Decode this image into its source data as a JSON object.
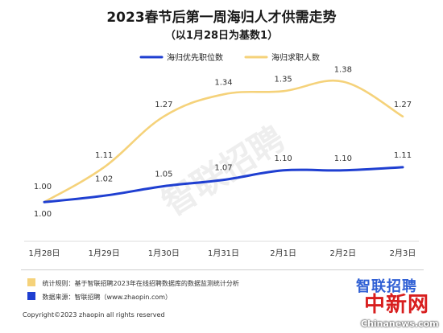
{
  "chart_data": {
    "type": "line",
    "title": "2023春节后第一周海归人才供需走势",
    "subtitle": "（以1月28日为基数1）",
    "categories": [
      "1月28日",
      "1月29日",
      "1月30日",
      "1月31日",
      "2月1日",
      "2月2日",
      "2月3日"
    ],
    "series": [
      {
        "name": "海归优先职位数",
        "values": [
          1.0,
          1.02,
          1.05,
          1.07,
          1.1,
          1.1,
          1.11
        ],
        "color": "#1f3fd1",
        "labels_shown": true
      },
      {
        "name": "海归求职人数",
        "values": [
          1.0,
          1.11,
          1.27,
          1.34,
          1.35,
          1.38,
          1.27
        ],
        "color": "#f5d27a",
        "labels_shown": true
      }
    ],
    "data_labels": {
      "海归优先职位数": [
        "1.00",
        "1.02",
        "1.05",
        "1.07",
        "1.10",
        "1.10",
        "1.11"
      ],
      "海归求职人数": [
        "1.00",
        "1.11",
        "1.27",
        "1.34",
        "1.35",
        "1.38",
        "1.27"
      ]
    },
    "ylim": [
      0.8,
      1.46
    ],
    "grid": false,
    "legend_position": "top-center",
    "xlabel": "",
    "ylabel": ""
  },
  "footer": {
    "note1": "统计规则：基于智联招聘2023年在线招聘数据库的数据监测统计分析",
    "note1_color": "#f5d27a",
    "note2": "数据来源：智联招聘（www.zhaopin.com）",
    "note2_color": "#1f3fd1",
    "copyright": "Copyright©2023 zhaopin all rights reserved",
    "brand": "智联招聘",
    "watermark_center": "智联招聘",
    "stamp": "中新网",
    "site": "Chinanews.com"
  }
}
